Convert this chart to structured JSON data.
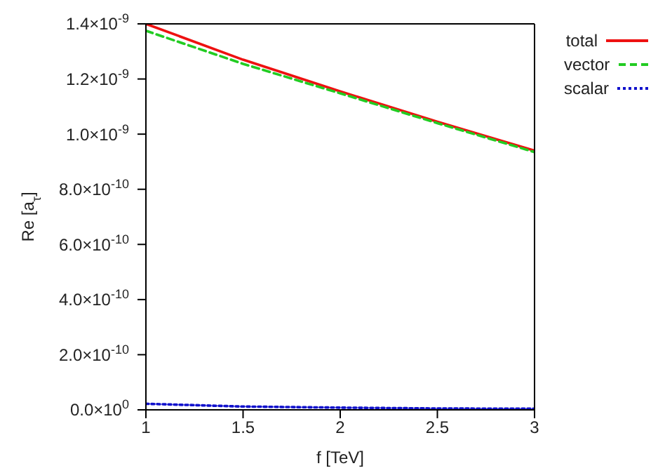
{
  "chart_data": {
    "type": "line",
    "xlabel": "f [TeV]",
    "ylabel": "Re [a$_{τ}$]",
    "x": [
      1,
      1.5,
      2,
      2.5,
      3
    ],
    "series": [
      {
        "name": "total",
        "color": "#ee1111",
        "line_style": "solid",
        "values": [
          1.4e-09,
          1.27e-09,
          1.155e-09,
          1.045e-09,
          9.4e-10
        ]
      },
      {
        "name": "vector",
        "color": "#22cc22",
        "line_style": "dashed",
        "values": [
          1.375e-09,
          1.255e-09,
          1.148e-09,
          1.04e-09,
          9.35e-10
        ]
      },
      {
        "name": "scalar",
        "color": "#1111cc",
        "line_style": "dotted",
        "values": [
          2.2e-11,
          1.2e-11,
          8e-12,
          5e-12,
          4e-12
        ]
      }
    ],
    "xlim": [
      1,
      3
    ],
    "xticks": [
      1,
      1.5,
      2,
      2.5,
      3
    ],
    "ylim": [
      0,
      1.4e-09
    ],
    "yticks": [
      {
        "value": 0,
        "label": "0.0×10$^{0}$"
      },
      {
        "value": 2e-10,
        "label": "2.0×10$^{-10}$"
      },
      {
        "value": 4e-10,
        "label": "4.0×10$^{-10}$"
      },
      {
        "value": 6e-10,
        "label": "6.0×10$^{-10}$"
      },
      {
        "value": 8e-10,
        "label": "8.0×10$^{-10}$"
      },
      {
        "value": 1e-09,
        "label": "1.0×10$^{-9}$"
      },
      {
        "value": 1.2e-09,
        "label": "1.2×10$^{-9}$"
      },
      {
        "value": 1.4e-09,
        "label": "1.4×10$^{-9}$"
      }
    ],
    "legend": "top right",
    "grid": false,
    "marker": "none"
  }
}
